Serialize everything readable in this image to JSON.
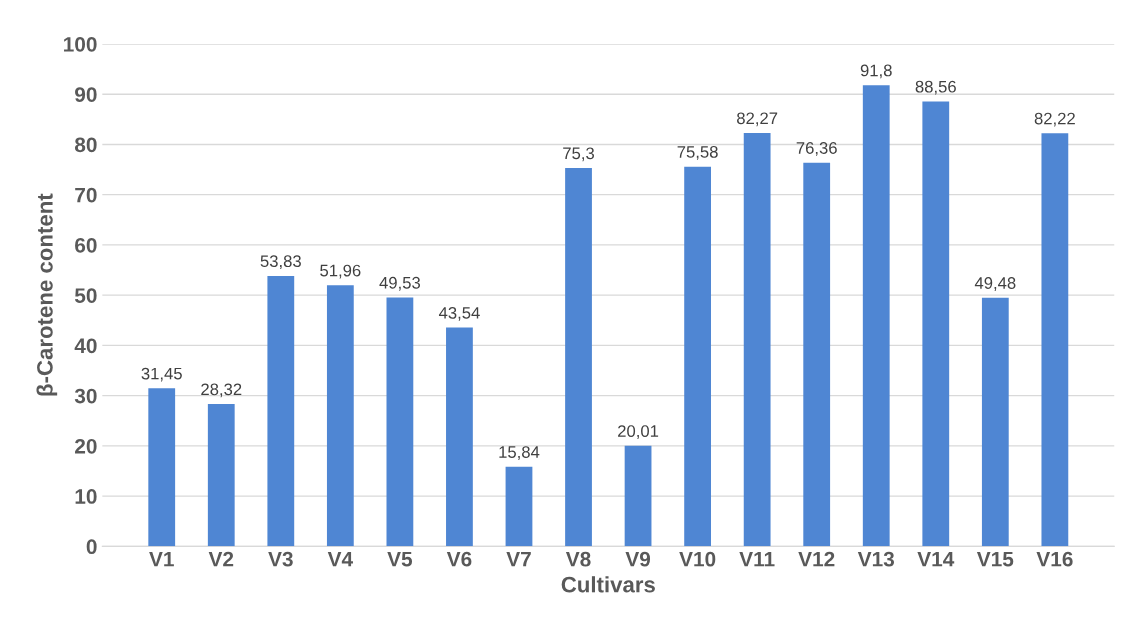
{
  "chart_data": {
    "type": "bar",
    "xlabel": "Cultivars",
    "ylabel": "β-Carotene content",
    "categories": [
      "V1",
      "V2",
      "V3",
      "V4",
      "V5",
      "V6",
      "V7",
      "V8",
      "V9",
      "V10",
      "V11",
      "V12",
      "V13",
      "V14",
      "V15",
      "V16"
    ],
    "values": [
      31.45,
      28.32,
      53.83,
      51.96,
      49.53,
      43.54,
      15.84,
      75.3,
      20.01,
      75.58,
      82.27,
      76.36,
      91.8,
      88.56,
      49.48,
      82.22
    ],
    "value_labels": [
      "31,45",
      "28,32",
      "53,83",
      "51,96",
      "49,53",
      "43,54",
      "15,84",
      "75,3",
      "20,01",
      "75,58",
      "82,27",
      "76,36",
      "91,8",
      "88,56",
      "49,48",
      "82,22"
    ],
    "color": "#4f86d3",
    "ylim": [
      0,
      100
    ],
    "yticks": [
      0,
      10,
      20,
      30,
      40,
      50,
      60,
      70,
      80,
      90,
      100
    ],
    "grid": "y"
  }
}
